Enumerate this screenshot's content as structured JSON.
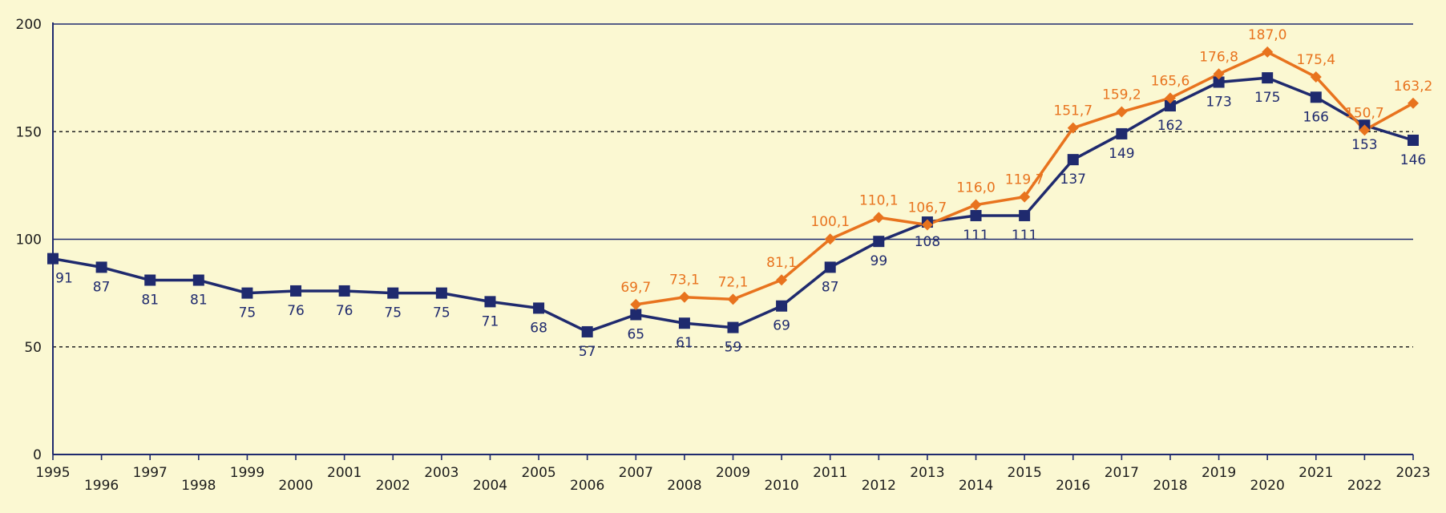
{
  "chart_data": {
    "type": "line",
    "x": [
      "1995",
      "1996",
      "1997",
      "1998",
      "1999",
      "2000",
      "2001",
      "2002",
      "2003",
      "2004",
      "2005",
      "2006",
      "2007",
      "2008",
      "2009",
      "2010",
      "2011",
      "2012",
      "2013",
      "2014",
      "2015",
      "2016",
      "2017",
      "2018",
      "2019",
      "2020",
      "2021",
      "2022",
      "2023"
    ],
    "y_ticks": [
      "0",
      "50",
      "100",
      "150",
      "200"
    ],
    "ylim": [
      0,
      200
    ],
    "grid": {
      "solid_at": [
        100,
        200
      ],
      "dashed_at": [
        50,
        150
      ]
    },
    "series": [
      {
        "color": "#1f2a6e",
        "marker": "square",
        "values": [
          91,
          87,
          81,
          81,
          75,
          76,
          76,
          75,
          75,
          71,
          68,
          57,
          65,
          61,
          59,
          69,
          87,
          99,
          108,
          111,
          111,
          137,
          149,
          162,
          173,
          175,
          166,
          153,
          146
        ],
        "labels": [
          "91",
          "87",
          "81",
          "81",
          "75",
          "76",
          "76",
          "75",
          "75",
          "71",
          "68",
          "57",
          "65",
          "61",
          "59",
          "69",
          "87",
          "99",
          "108",
          "111",
          "111",
          "137",
          "149",
          "162",
          "173",
          "175",
          "166",
          "153",
          "146"
        ]
      },
      {
        "color": "#e8731e",
        "marker": "diamond",
        "values": [
          null,
          null,
          null,
          null,
          null,
          null,
          null,
          null,
          null,
          null,
          null,
          null,
          69.7,
          73.1,
          72.1,
          81.1,
          100.1,
          110.1,
          106.7,
          116.0,
          119.7,
          151.7,
          159.2,
          165.6,
          176.8,
          187.0,
          175.4,
          150.7,
          163.2
        ],
        "labels": [
          null,
          null,
          null,
          null,
          null,
          null,
          null,
          null,
          null,
          null,
          null,
          null,
          "69,7",
          "73,1",
          "72,1",
          "81,1",
          "100,1",
          "110,1",
          "106,7",
          "116,0",
          "119,7",
          "151,7",
          "159,2",
          "165,6",
          "176,8",
          "187,0",
          "175,4",
          "150,7",
          "163,2"
        ]
      }
    ]
  }
}
